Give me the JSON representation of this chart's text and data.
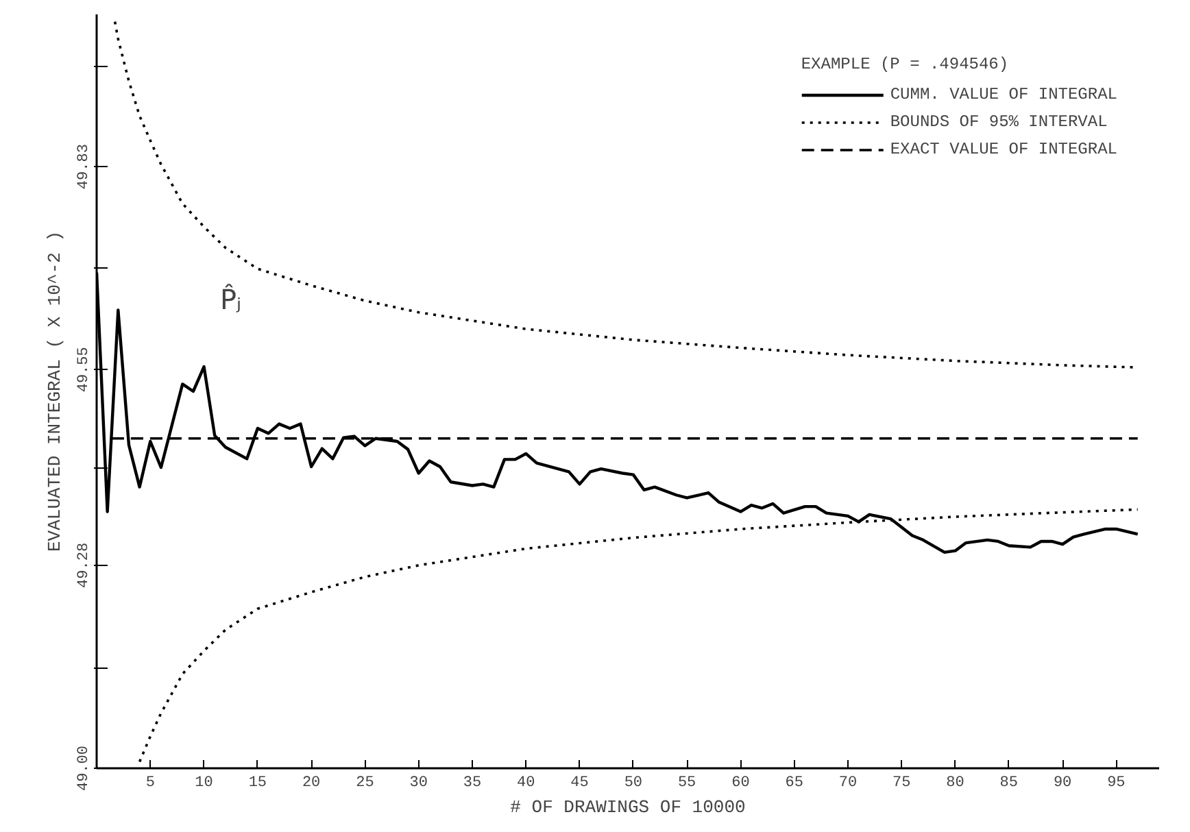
{
  "chart_data": {
    "type": "line",
    "xlabel": "# OF DRAWINGS OF 10000",
    "ylabel": "EVALUATED INTEGRAL ( X 10^-2 )",
    "legend_title": "EXAMPLE (P = .494546)",
    "xlim": [
      0,
      99
    ],
    "ylim": [
      49.0,
      50.04
    ],
    "xticks": [
      5,
      10,
      15,
      20,
      25,
      30,
      35,
      40,
      45,
      50,
      55,
      60,
      65,
      70,
      75,
      80,
      85,
      90,
      95
    ],
    "yticks": [
      {
        "value": 49.0,
        "label": "49.00"
      },
      {
        "value": 49.1383,
        "label": null
      },
      {
        "value": 49.28,
        "label": "49.28"
      },
      {
        "value": 49.415,
        "label": null
      },
      {
        "value": 49.55,
        "label": "49.55"
      },
      {
        "value": 49.69,
        "label": null
      },
      {
        "value": 49.83,
        "label": "49.83"
      },
      {
        "value": 49.968,
        "label": null
      }
    ],
    "grid": false,
    "legend": "top right",
    "marker": "none",
    "annotations": [
      "P̂ⱼ"
    ],
    "series": [
      {
        "name": "CUMM. VALUE OF INTEGRAL",
        "color": "#000000",
        "line_style": "solid",
        "x": [
          0,
          1,
          2,
          3,
          4,
          5,
          6,
          8,
          9,
          10,
          11,
          12,
          14,
          15,
          16,
          17,
          18,
          19,
          20,
          21,
          22,
          23,
          24,
          25,
          26,
          28,
          29,
          30,
          31,
          32,
          33,
          35,
          36,
          37,
          38,
          39,
          40,
          41,
          42,
          43,
          44,
          45,
          46,
          47,
          49,
          50,
          51,
          52,
          54,
          55,
          57,
          58,
          60,
          61,
          62,
          63,
          64,
          66,
          67,
          68,
          70,
          71,
          72,
          74,
          76,
          77,
          79,
          80,
          81,
          83,
          84,
          85,
          87,
          88,
          89,
          90,
          91,
          92,
          94,
          95,
          97
        ],
        "values": [
          49.684,
          49.354,
          49.632,
          49.446,
          49.388,
          49.451,
          49.415,
          49.53,
          49.52,
          49.554,
          49.459,
          49.443,
          49.427,
          49.469,
          49.462,
          49.475,
          49.469,
          49.475,
          49.416,
          49.441,
          49.427,
          49.456,
          49.458,
          49.445,
          49.455,
          49.451,
          49.44,
          49.407,
          49.424,
          49.416,
          49.395,
          49.39,
          49.392,
          49.388,
          49.426,
          49.426,
          49.434,
          49.421,
          49.417,
          49.413,
          49.409,
          49.392,
          49.409,
          49.413,
          49.407,
          49.405,
          49.384,
          49.388,
          49.377,
          49.373,
          49.38,
          49.367,
          49.354,
          49.363,
          49.359,
          49.365,
          49.352,
          49.361,
          49.361,
          49.352,
          49.348,
          49.34,
          49.35,
          49.344,
          49.321,
          49.315,
          49.298,
          49.3,
          49.311,
          49.315,
          49.313,
          49.307,
          49.305,
          49.313,
          49.313,
          49.309,
          49.319,
          49.323,
          49.33,
          49.33,
          49.323
        ]
      },
      {
        "name": "BOUNDS OF 95% INTERVAL",
        "color": "#000000",
        "line_style": "dotted",
        "x": [
          1.7,
          2,
          3,
          4,
          5,
          6,
          8,
          10,
          12,
          15,
          20,
          25,
          30,
          40,
          50,
          60,
          70,
          80,
          90,
          97
        ],
        "values": [
          50.03,
          50.006,
          49.948,
          49.9,
          49.866,
          49.833,
          49.779,
          49.747,
          49.718,
          49.689,
          49.666,
          49.645,
          49.629,
          49.606,
          49.591,
          49.58,
          49.57,
          49.562,
          49.556,
          49.553
        ]
      },
      {
        "color": "#000000",
        "line_style": "dotted",
        "x": [
          4,
          5,
          6,
          8,
          10,
          12,
          15,
          20,
          25,
          30,
          40,
          50,
          60,
          70,
          80,
          90,
          97
        ],
        "values": [
          49.009,
          49.044,
          49.076,
          49.13,
          49.162,
          49.191,
          49.22,
          49.243,
          49.264,
          49.28,
          49.303,
          49.318,
          49.33,
          49.339,
          49.347,
          49.353,
          49.357
        ]
      },
      {
        "name": "EXACT VALUE OF INTEGRAL",
        "color": "#000000",
        "line_style": "dashed",
        "x": [
          1.4,
          97
        ],
        "values": [
          49.455,
          49.455
        ]
      }
    ]
  }
}
